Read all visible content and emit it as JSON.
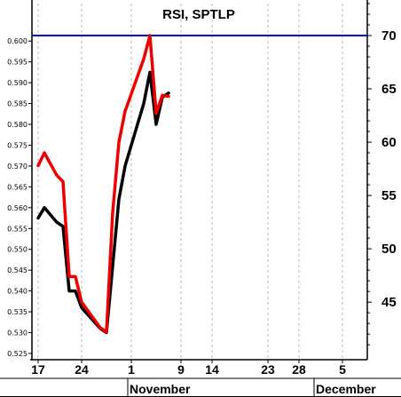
{
  "chart_data": {
    "type": "line",
    "title": "RSI, SPTLP",
    "x_tick_labels": [
      "17",
      "24",
      "1",
      "9",
      "14",
      "23",
      "28",
      "5"
    ],
    "month_labels": [
      "November",
      "December"
    ],
    "left_axis": {
      "ylim": [
        0.5235,
        0.609
      ],
      "ticks": [
        0.525,
        0.53,
        0.535,
        0.54,
        0.545,
        0.55,
        0.555,
        0.56,
        0.565,
        0.57,
        0.575,
        0.58,
        0.585,
        0.59,
        0.595,
        0.6
      ],
      "tick_labels": [
        "0.525",
        "0.530",
        "0.535",
        "0.540",
        "0.545",
        "0.550",
        "0.555",
        "0.560",
        "0.565",
        "0.570",
        "0.575",
        "0.580",
        "0.585",
        "0.590",
        "0.595",
        "0.600"
      ]
    },
    "right_axis": {
      "ylim": [
        39.6,
        73.0
      ],
      "ticks": [
        45,
        50,
        55,
        60,
        65,
        70
      ],
      "tick_labels": [
        "45",
        "50",
        "55",
        "60",
        "65",
        "70"
      ]
    },
    "reference_line": {
      "value": 70,
      "axis": "right",
      "color": "#0000cc"
    },
    "series": [
      {
        "axis": "left",
        "color": "#000000",
        "x": [
          "Oct 17",
          "Oct 18",
          "Oct 20",
          "Oct 21",
          "Oct 22",
          "Oct 23",
          "Oct 24",
          "Oct 27",
          "Oct 28",
          "Oct 29",
          "Oct 30",
          "Oct 31",
          "Nov 3",
          "Nov 4",
          "Nov 5",
          "Nov 6",
          "Nov 7",
          "Nov 10",
          "Nov 11",
          "Nov 12",
          "Nov 13"
        ],
        "values": [
          0.5575,
          0.56,
          0.5565,
          0.5555,
          0.54,
          0.54,
          0.536,
          0.531,
          0.53,
          0.546,
          0.562,
          0.57,
          0.585,
          0.5925,
          0.58,
          0.5865,
          0.5875,
          null,
          null,
          null,
          null
        ]
      },
      {
        "axis": "right",
        "color": "#ee0000",
        "x": [
          "Oct 17",
          "Oct 18",
          "Oct 20",
          "Oct 21",
          "Oct 22",
          "Oct 23",
          "Oct 24",
          "Oct 27",
          "Oct 28",
          "Oct 29",
          "Oct 30",
          "Oct 31",
          "Nov 3",
          "Nov 4",
          "Nov 5",
          "Nov 6",
          "Nov 7",
          "Nov 10",
          "Nov 11",
          "Nov 12",
          "Nov 13"
        ],
        "values": [
          57.8,
          59.0,
          56.9,
          56.3,
          47.4,
          47.4,
          45.0,
          42.6,
          42.2,
          53.4,
          60.0,
          62.9,
          67.8,
          70.0,
          62.7,
          64.4,
          64.3,
          null,
          null,
          null,
          null
        ]
      }
    ],
    "colors": {
      "rsi_black": "#000000",
      "rsi_red": "#ee0000",
      "reference": "#0000cc",
      "grid": "#b8b8b8"
    }
  }
}
